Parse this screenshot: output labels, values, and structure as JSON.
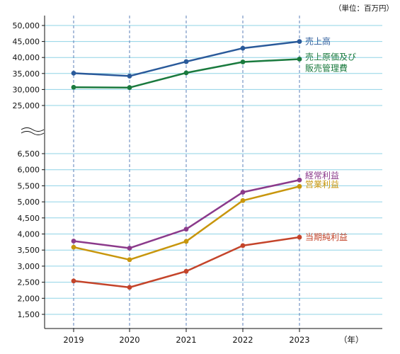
{
  "unit_note": "（単位：百万円）",
  "x_unit": "（年）",
  "chart_data": {
    "type": "line",
    "categories": [
      "2019",
      "2020",
      "2021",
      "2022",
      "2023"
    ],
    "axis_break": true,
    "upper_axis": {
      "ticks": [
        "50,000",
        "45,000",
        "40,000",
        "35,000",
        "30,000",
        "25,000"
      ],
      "tick_values": [
        50000,
        45000,
        40000,
        35000,
        30000,
        25000
      ]
    },
    "lower_axis": {
      "ticks": [
        "6,500",
        "6,000",
        "5,500",
        "5,000",
        "4,500",
        "4,000",
        "3,500",
        "3,000",
        "2,500",
        "2,000",
        "1,500"
      ],
      "tick_values": [
        6500,
        6000,
        5500,
        5000,
        4500,
        4000,
        3500,
        3000,
        2500,
        2000,
        1500
      ]
    },
    "grid": true,
    "series": [
      {
        "name": "売上高",
        "name_lines": [
          "売上高"
        ],
        "panel": "upper",
        "color": "#2a5a9a",
        "values": [
          35100,
          34200,
          38700,
          42900,
          45000
        ]
      },
      {
        "name": "売上原価及び販売管理費",
        "name_lines": [
          "売上原価及び",
          "販売管理費"
        ],
        "panel": "upper",
        "color": "#1a7a3e",
        "values": [
          30700,
          30600,
          35200,
          38600,
          39500
        ]
      },
      {
        "name": "経常利益",
        "name_lines": [
          "経常利益"
        ],
        "panel": "lower",
        "color": "#8b3a8b",
        "values": [
          3780,
          3560,
          4150,
          5300,
          5680
        ]
      },
      {
        "name": "営業利益",
        "name_lines": [
          "営業利益"
        ],
        "panel": "lower",
        "color": "#c8960c",
        "values": [
          3590,
          3200,
          3770,
          5040,
          5480
        ]
      },
      {
        "name": "当期純利益",
        "name_lines": [
          "当期純利益"
        ],
        "panel": "lower",
        "color": "#c4442a",
        "values": [
          2540,
          2340,
          2840,
          3640,
          3900
        ]
      }
    ]
  }
}
